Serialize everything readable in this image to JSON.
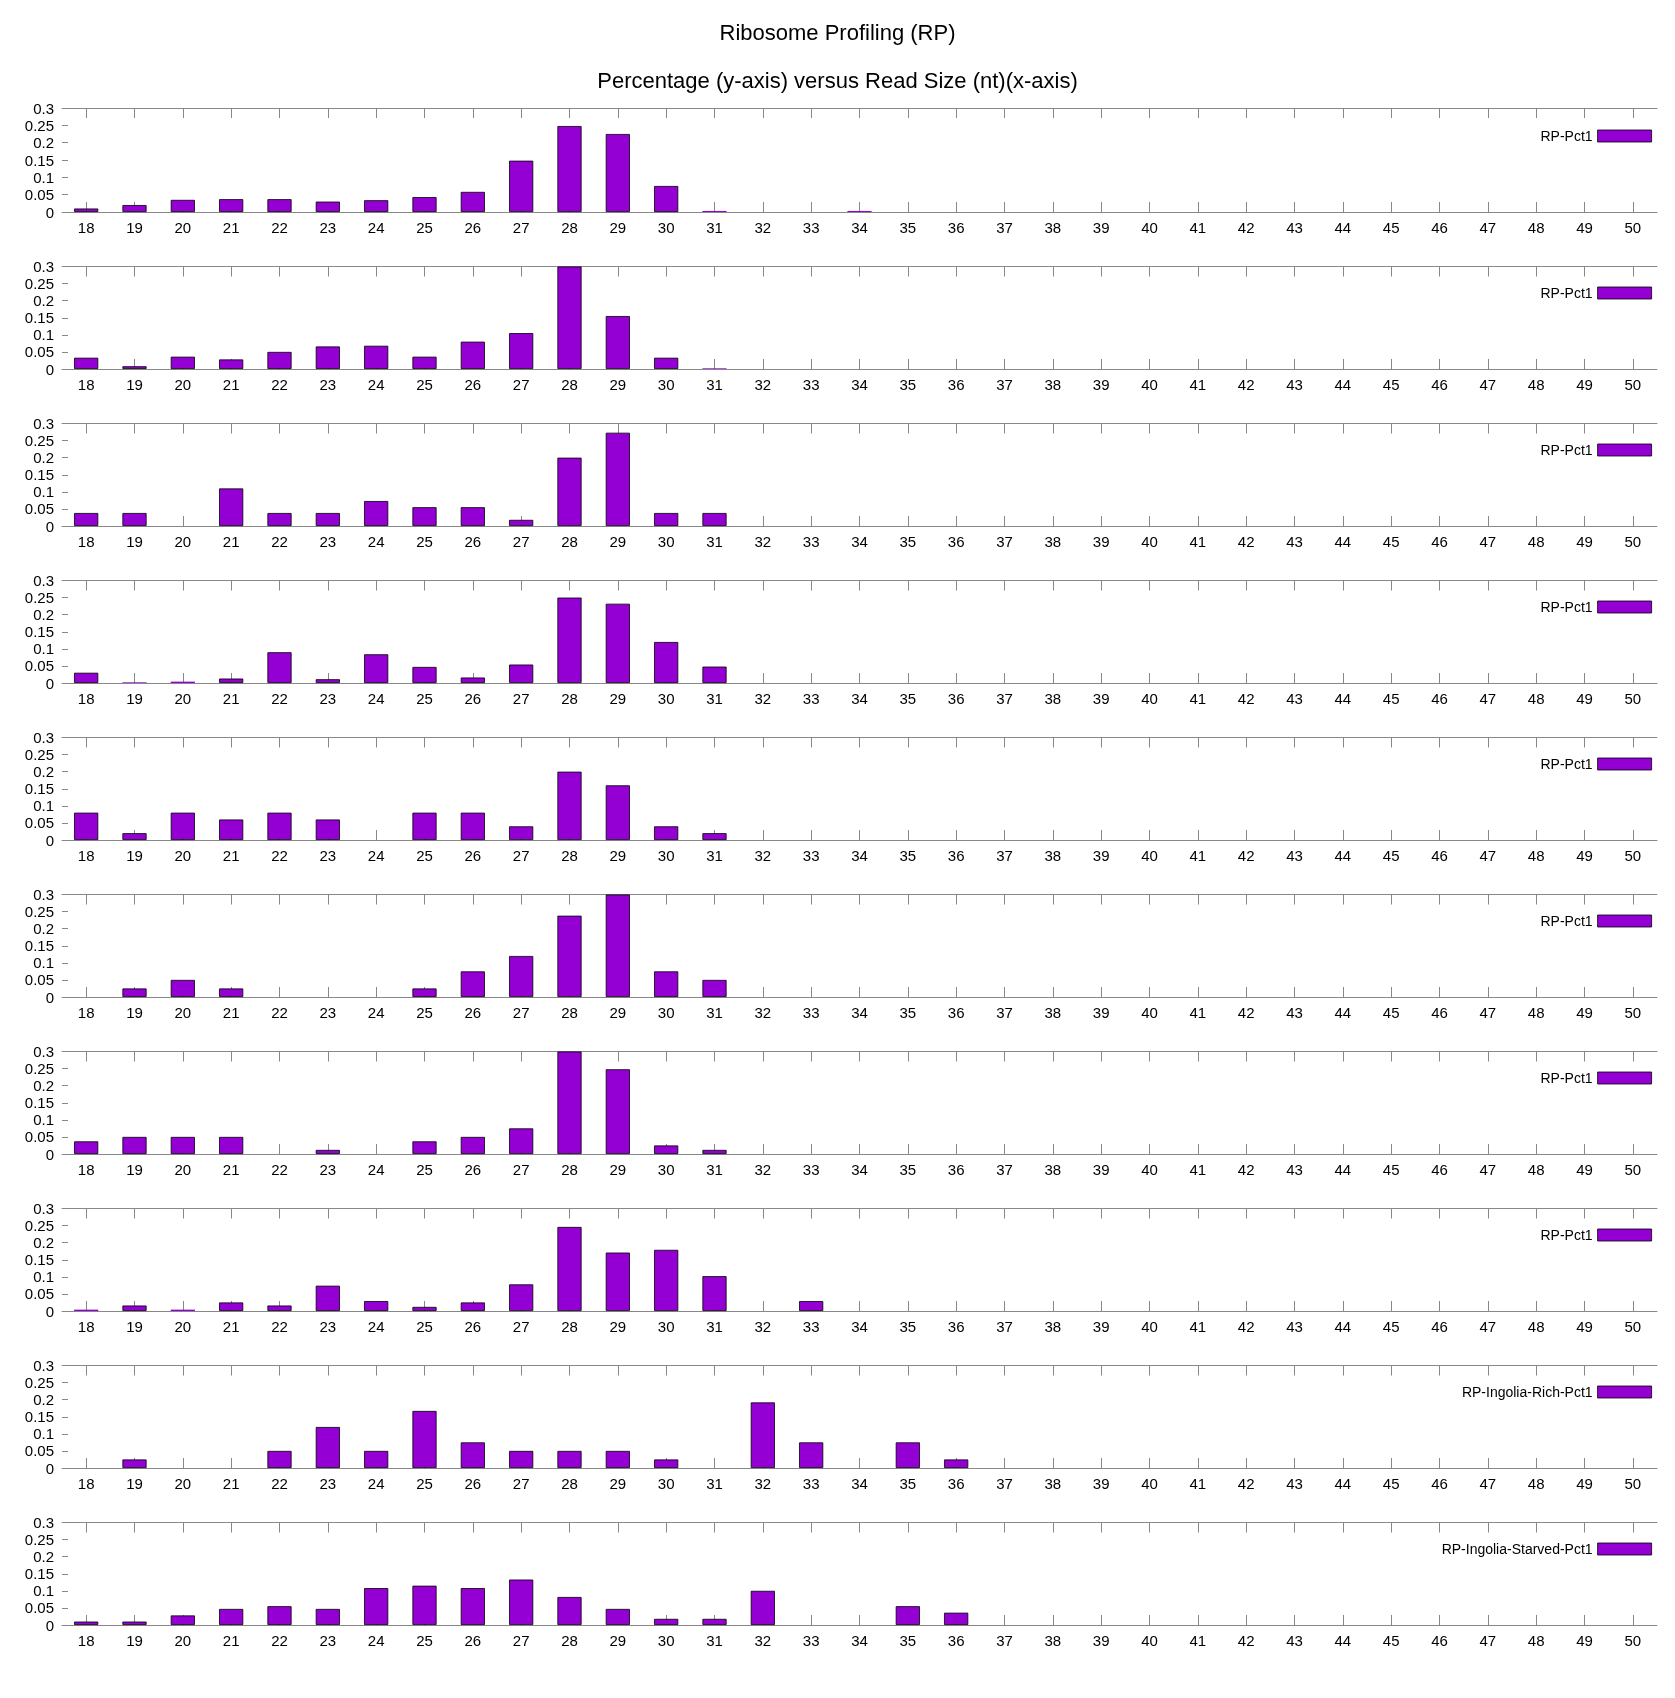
{
  "chart_data": [
    {
      "type": "bar",
      "title": "Ribosome Profiling (RP)",
      "subtitle": "Percentage (y-axis) versus Read Size (nt)(x-axis)",
      "categories": [
        "18",
        "19",
        "20",
        "21",
        "22",
        "23",
        "24",
        "25",
        "26",
        "27",
        "28",
        "29",
        "30",
        "31",
        "32",
        "33",
        "34",
        "35",
        "36",
        "37",
        "38",
        "39",
        "40",
        "41",
        "42",
        "43",
        "44",
        "45",
        "46",
        "47",
        "48",
        "49",
        "50"
      ],
      "series": [
        {
          "name": "RP-Pct1",
          "color": "#9400d3",
          "values": [
            0.01,
            0.02,
            0.035,
            0.037,
            0.037,
            0.03,
            0.034,
            0.043,
            0.058,
            0.148,
            0.248,
            0.225,
            0.075,
            0.003,
            null,
            null,
            0.003,
            null,
            null,
            null,
            null,
            null,
            null,
            null,
            null,
            null,
            null,
            null,
            null,
            null,
            null,
            null,
            null
          ]
        }
      ],
      "ylim": [
        0,
        0.3
      ],
      "yticks": [
        0,
        0.05,
        0.1,
        0.15,
        0.2,
        0.25,
        0.3
      ],
      "legend": "top right",
      "grid": false
    },
    {
      "type": "bar",
      "categories": [
        "18",
        "19",
        "20",
        "21",
        "22",
        "23",
        "24",
        "25",
        "26",
        "27",
        "28",
        "29",
        "30",
        "31",
        "32",
        "33",
        "34",
        "35",
        "36",
        "37",
        "38",
        "39",
        "40",
        "41",
        "42",
        "43",
        "44",
        "45",
        "46",
        "47",
        "48",
        "49",
        "50"
      ],
      "series": [
        {
          "name": "RP-Pct1",
          "color": "#9400d3",
          "values": [
            0.033,
            0.008,
            0.036,
            0.028,
            0.05,
            0.066,
            0.068,
            0.036,
            0.08,
            0.105,
            0.3,
            0.155,
            0.033,
            0.002,
            null,
            null,
            null,
            null,
            null,
            null,
            null,
            null,
            null,
            null,
            null,
            null,
            null,
            null,
            null,
            null,
            null,
            null,
            null
          ]
        }
      ],
      "ylim": [
        0,
        0.3
      ],
      "yticks": [
        0,
        0.05,
        0.1,
        0.15,
        0.2,
        0.25,
        0.3
      ],
      "legend": "top right",
      "grid": false
    },
    {
      "type": "bar",
      "categories": [
        "18",
        "19",
        "20",
        "21",
        "22",
        "23",
        "24",
        "25",
        "26",
        "27",
        "28",
        "29",
        "30",
        "31",
        "32",
        "33",
        "34",
        "35",
        "36",
        "37",
        "38",
        "39",
        "40",
        "41",
        "42",
        "43",
        "44",
        "45",
        "46",
        "47",
        "48",
        "49",
        "50"
      ],
      "series": [
        {
          "name": "RP-Pct1",
          "color": "#9400d3",
          "values": [
            0.038,
            0.038,
            null,
            0.11,
            0.038,
            0.038,
            0.073,
            0.055,
            0.055,
            0.018,
            0.2,
            0.273,
            0.038,
            0.038,
            null,
            null,
            null,
            null,
            null,
            null,
            null,
            null,
            null,
            null,
            null,
            null,
            null,
            null,
            null,
            null,
            null,
            null,
            null
          ]
        }
      ],
      "ylim": [
        0,
        0.3
      ],
      "yticks": [
        0,
        0.05,
        0.1,
        0.15,
        0.2,
        0.25,
        0.3
      ],
      "legend": "top right",
      "grid": false
    },
    {
      "type": "bar",
      "categories": [
        "18",
        "19",
        "20",
        "21",
        "22",
        "23",
        "24",
        "25",
        "26",
        "27",
        "28",
        "29",
        "30",
        "31",
        "32",
        "33",
        "34",
        "35",
        "36",
        "37",
        "38",
        "39",
        "40",
        "41",
        "42",
        "43",
        "44",
        "45",
        "46",
        "47",
        "48",
        "49",
        "50"
      ],
      "series": [
        {
          "name": "RP-Pct1",
          "color": "#9400d3",
          "values": [
            0.03,
            0.002,
            0.004,
            0.013,
            0.09,
            0.011,
            0.084,
            0.047,
            0.016,
            0.054,
            0.25,
            0.232,
            0.12,
            0.048,
            null,
            null,
            null,
            null,
            null,
            null,
            null,
            null,
            null,
            null,
            null,
            null,
            null,
            null,
            null,
            null,
            null,
            null,
            null
          ]
        }
      ],
      "ylim": [
        0,
        0.3
      ],
      "yticks": [
        0,
        0.05,
        0.1,
        0.15,
        0.2,
        0.25,
        0.3
      ],
      "legend": "top right",
      "grid": false
    },
    {
      "type": "bar",
      "categories": [
        "18",
        "19",
        "20",
        "21",
        "22",
        "23",
        "24",
        "25",
        "26",
        "27",
        "28",
        "29",
        "30",
        "31",
        "32",
        "33",
        "34",
        "35",
        "36",
        "37",
        "38",
        "39",
        "40",
        "41",
        "42",
        "43",
        "44",
        "45",
        "46",
        "47",
        "48",
        "49",
        "50"
      ],
      "series": [
        {
          "name": "RP-Pct1",
          "color": "#9400d3",
          "values": [
            0.08,
            0.02,
            0.08,
            0.06,
            0.08,
            0.06,
            null,
            0.08,
            0.08,
            0.04,
            0.2,
            0.16,
            0.04,
            0.02,
            null,
            null,
            null,
            null,
            null,
            null,
            null,
            null,
            null,
            null,
            null,
            null,
            null,
            null,
            null,
            null,
            null,
            null,
            null
          ]
        }
      ],
      "ylim": [
        0,
        0.3
      ],
      "yticks": [
        0,
        0.05,
        0.1,
        0.15,
        0.2,
        0.25,
        0.3
      ],
      "legend": "top right",
      "grid": false
    },
    {
      "type": "bar",
      "categories": [
        "18",
        "19",
        "20",
        "21",
        "22",
        "23",
        "24",
        "25",
        "26",
        "27",
        "28",
        "29",
        "30",
        "31",
        "32",
        "33",
        "34",
        "35",
        "36",
        "37",
        "38",
        "39",
        "40",
        "41",
        "42",
        "43",
        "44",
        "45",
        "46",
        "47",
        "48",
        "49",
        "50"
      ],
      "series": [
        {
          "name": "RP-Pct1",
          "color": "#9400d3",
          "values": [
            null,
            0.025,
            0.05,
            0.025,
            null,
            null,
            null,
            0.025,
            0.075,
            0.12,
            0.238,
            0.3,
            0.075,
            0.05,
            null,
            null,
            null,
            null,
            null,
            null,
            null,
            null,
            null,
            null,
            null,
            null,
            null,
            null,
            null,
            null,
            null,
            null,
            null
          ]
        }
      ],
      "ylim": [
        0,
        0.3
      ],
      "yticks": [
        0,
        0.05,
        0.1,
        0.15,
        0.2,
        0.25,
        0.3
      ],
      "legend": "top right",
      "grid": false
    },
    {
      "type": "bar",
      "categories": [
        "18",
        "19",
        "20",
        "21",
        "22",
        "23",
        "24",
        "25",
        "26",
        "27",
        "28",
        "29",
        "30",
        "31",
        "32",
        "33",
        "34",
        "35",
        "36",
        "37",
        "38",
        "39",
        "40",
        "41",
        "42",
        "43",
        "44",
        "45",
        "46",
        "47",
        "48",
        "49",
        "50"
      ],
      "series": [
        {
          "name": "RP-Pct1",
          "color": "#9400d3",
          "values": [
            0.037,
            0.05,
            0.05,
            0.05,
            null,
            0.012,
            null,
            0.037,
            0.05,
            0.075,
            0.3,
            0.248,
            0.025,
            0.012,
            null,
            null,
            null,
            null,
            null,
            null,
            null,
            null,
            null,
            null,
            null,
            null,
            null,
            null,
            null,
            null,
            null,
            null,
            null
          ]
        }
      ],
      "ylim": [
        0,
        0.3
      ],
      "yticks": [
        0,
        0.05,
        0.1,
        0.15,
        0.2,
        0.25,
        0.3
      ],
      "legend": "top right",
      "grid": false
    },
    {
      "type": "bar",
      "categories": [
        "18",
        "19",
        "20",
        "21",
        "22",
        "23",
        "24",
        "25",
        "26",
        "27",
        "28",
        "29",
        "30",
        "31",
        "32",
        "33",
        "34",
        "35",
        "36",
        "37",
        "38",
        "39",
        "40",
        "41",
        "42",
        "43",
        "44",
        "45",
        "46",
        "47",
        "48",
        "49",
        "50"
      ],
      "series": [
        {
          "name": "RP-Pct1",
          "color": "#9400d3",
          "values": [
            0.004,
            0.016,
            0.004,
            0.025,
            0.016,
            0.074,
            0.029,
            0.012,
            0.025,
            0.078,
            0.246,
            0.171,
            0.179,
            0.102,
            null,
            0.029,
            null,
            null,
            null,
            null,
            null,
            null,
            null,
            null,
            null,
            null,
            null,
            null,
            null,
            null,
            null,
            null,
            null
          ]
        }
      ],
      "ylim": [
        0,
        0.3
      ],
      "yticks": [
        0,
        0.05,
        0.1,
        0.15,
        0.2,
        0.25,
        0.3
      ],
      "legend": "top right",
      "grid": false
    },
    {
      "type": "bar",
      "categories": [
        "18",
        "19",
        "20",
        "21",
        "22",
        "23",
        "24",
        "25",
        "26",
        "27",
        "28",
        "29",
        "30",
        "31",
        "32",
        "33",
        "34",
        "35",
        "36",
        "37",
        "38",
        "39",
        "40",
        "41",
        "42",
        "43",
        "44",
        "45",
        "46",
        "47",
        "48",
        "49",
        "50"
      ],
      "series": [
        {
          "name": "RP-Ingolia-Rich-Pct1",
          "color": "#9400d3",
          "values": [
            null,
            0.025,
            null,
            null,
            0.05,
            0.12,
            0.05,
            0.167,
            0.075,
            0.05,
            0.05,
            0.05,
            0.025,
            null,
            0.192,
            0.075,
            null,
            0.075,
            0.025,
            null,
            null,
            null,
            null,
            null,
            null,
            null,
            null,
            null,
            null,
            null,
            null,
            null,
            null
          ]
        }
      ],
      "ylim": [
        0,
        0.3
      ],
      "yticks": [
        0,
        0.05,
        0.1,
        0.15,
        0.2,
        0.25,
        0.3
      ],
      "legend": "top right",
      "grid": false
    },
    {
      "type": "bar",
      "categories": [
        "18",
        "19",
        "20",
        "21",
        "22",
        "23",
        "24",
        "25",
        "26",
        "27",
        "28",
        "29",
        "30",
        "31",
        "32",
        "33",
        "34",
        "35",
        "36",
        "37",
        "38",
        "39",
        "40",
        "41",
        "42",
        "43",
        "44",
        "45",
        "46",
        "47",
        "48",
        "49",
        "50"
      ],
      "series": [
        {
          "name": "RP-Ingolia-Starved-Pct1",
          "color": "#9400d3",
          "values": [
            0.01,
            0.01,
            0.028,
            0.047,
            0.055,
            0.047,
            0.108,
            0.115,
            0.108,
            0.133,
            0.082,
            0.047,
            0.018,
            0.018,
            0.1,
            null,
            null,
            0.055,
            0.036,
            null,
            null,
            null,
            null,
            null,
            null,
            null,
            null,
            null,
            null,
            null,
            null,
            null,
            null
          ]
        }
      ],
      "ylim": [
        0,
        0.3
      ],
      "yticks": [
        0,
        0.05,
        0.1,
        0.15,
        0.2,
        0.25,
        0.3
      ],
      "legend": "top right",
      "grid": false
    }
  ]
}
